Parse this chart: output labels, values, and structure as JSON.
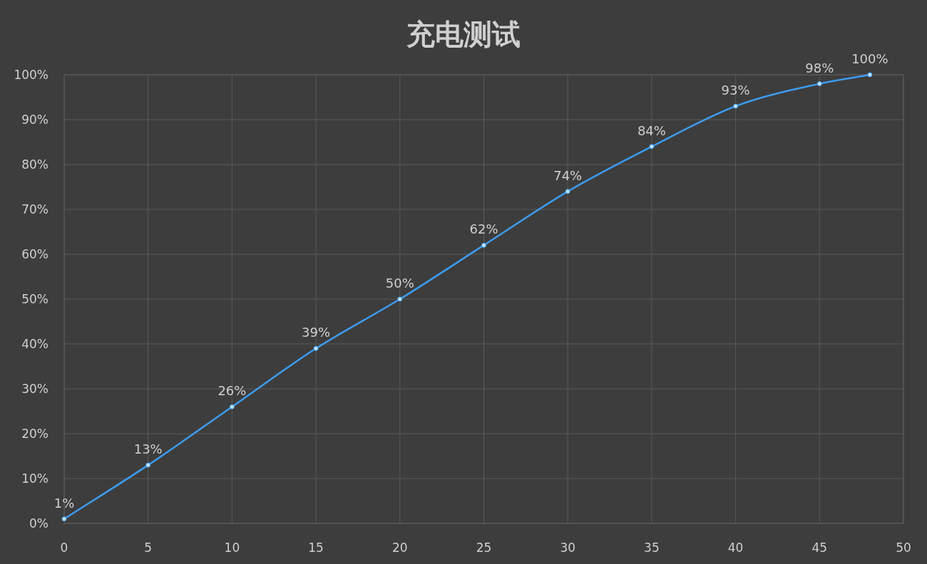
{
  "chart_data": {
    "type": "line",
    "title": "充电测试",
    "x": [
      0,
      5,
      10,
      15,
      20,
      25,
      30,
      35,
      40,
      45,
      48
    ],
    "series": [
      {
        "color": "#3d9cf0",
        "values": [
          1,
          13,
          26,
          39,
          50,
          62,
          74,
          84,
          93,
          98,
          100
        ],
        "value_labels": [
          "1%",
          "13%",
          "26%",
          "39%",
          "50%",
          "62%",
          "74%",
          "84%",
          "93%",
          "98%",
          "100%"
        ]
      }
    ],
    "xlim": [
      0,
      50
    ],
    "xticks": [
      0,
      5,
      10,
      15,
      20,
      25,
      30,
      35,
      40,
      45,
      50
    ],
    "ylim": [
      0,
      100
    ],
    "yticks": [
      {
        "value": 0,
        "label": "0%"
      },
      {
        "value": 10,
        "label": "10%"
      },
      {
        "value": 20,
        "label": "20%"
      },
      {
        "value": 30,
        "label": "30%"
      },
      {
        "value": 40,
        "label": "40%"
      },
      {
        "value": 50,
        "label": "50%"
      },
      {
        "value": 60,
        "label": "60%"
      },
      {
        "value": 70,
        "label": "70%"
      },
      {
        "value": 80,
        "label": "80%"
      },
      {
        "value": 90,
        "label": "90%"
      },
      {
        "value": 100,
        "label": "100%"
      }
    ],
    "grid": true,
    "marker": "circle",
    "line_style": "solid"
  }
}
